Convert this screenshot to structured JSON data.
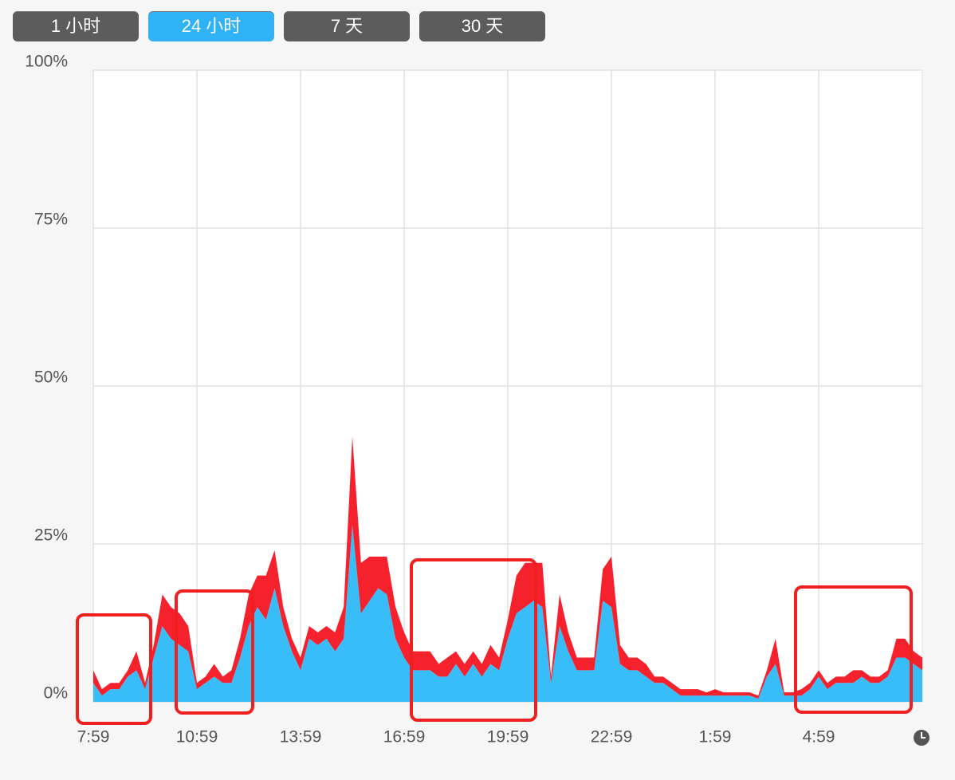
{
  "buttons": [
    {
      "label": "1 小时",
      "active": false
    },
    {
      "label": "24 小时",
      "active": true
    },
    {
      "label": "7 天",
      "active": false
    },
    {
      "label": "30 天",
      "active": false
    }
  ],
  "chart_data": {
    "type": "stacked-area",
    "x": [
      0,
      0.25,
      0.5,
      0.75,
      1,
      1.25,
      1.5,
      1.75,
      2,
      2.25,
      2.5,
      2.75,
      3,
      3.25,
      3.5,
      3.75,
      4,
      4.25,
      4.5,
      4.75,
      5,
      5.25,
      5.5,
      5.75,
      6,
      6.25,
      6.5,
      6.75,
      7,
      7.25,
      7.5,
      7.75,
      8,
      8.25,
      8.5,
      8.75,
      9,
      9.25,
      9.5,
      9.75,
      10,
      10.25,
      10.5,
      10.75,
      11,
      11.25,
      11.5,
      11.75,
      12,
      12.25,
      12.5,
      12.75,
      13,
      13.25,
      13.5,
      13.75,
      14,
      14.25,
      14.5,
      14.75,
      15,
      15.25,
      15.5,
      15.75,
      16,
      16.25,
      16.5,
      16.75,
      17,
      17.25,
      17.5,
      17.75,
      18,
      18.25,
      18.5,
      18.75,
      19,
      19.25,
      19.5,
      19.75,
      20,
      20.25,
      20.5,
      20.75,
      21,
      21.25,
      21.5,
      21.75,
      22,
      22.25,
      22.5,
      22.75,
      23,
      23.25,
      23.5,
      23.75,
      24
    ],
    "series": [
      {
        "color": "#38bdf8",
        "values": [
          3,
          1,
          2,
          2,
          4,
          5,
          2,
          7,
          12,
          10,
          9,
          8,
          2,
          3,
          4,
          3,
          3,
          7,
          12,
          15,
          13,
          18,
          12,
          8,
          5,
          10,
          9,
          10,
          8,
          10,
          28,
          14,
          16,
          18,
          17,
          10,
          7,
          5,
          5,
          5,
          4,
          4,
          6,
          4,
          6,
          4,
          6,
          5,
          10,
          14,
          15,
          16,
          15,
          3,
          12,
          8,
          5,
          5,
          5,
          16,
          15,
          6,
          5,
          5,
          4,
          3,
          3,
          2,
          1,
          1,
          1,
          1,
          1,
          1,
          1,
          1,
          1,
          0.5,
          4,
          6,
          1,
          1,
          1,
          2,
          4,
          2,
          3,
          3,
          3,
          4,
          3,
          3,
          4,
          7,
          7,
          6,
          5
        ]
      },
      {
        "color": "#f5222d",
        "values": [
          2,
          1,
          1,
          1,
          1,
          3,
          1,
          2,
          5,
          5,
          5,
          4,
          1,
          1,
          2,
          1,
          2,
          3,
          5,
          5,
          7,
          6,
          3,
          2,
          2,
          2,
          2,
          2,
          3,
          5,
          14,
          8,
          7,
          5,
          6,
          5,
          4,
          3,
          3,
          3,
          2,
          3,
          2,
          2,
          2,
          2,
          3,
          2,
          3,
          6,
          7,
          6,
          7,
          1,
          5,
          3,
          2,
          2,
          2,
          5,
          8,
          3,
          2,
          2,
          2,
          1,
          1,
          1,
          1,
          1,
          1,
          0.5,
          1,
          0.5,
          0.5,
          0.5,
          0.5,
          0.5,
          1,
          4,
          0.5,
          0.5,
          1,
          1,
          1,
          1,
          1,
          1,
          2,
          1,
          1,
          1,
          1,
          3,
          3,
          2,
          2
        ]
      }
    ],
    "xlim": [
      0,
      24
    ],
    "xticks": [
      {
        "value": 0,
        "label": "7:59"
      },
      {
        "value": 3,
        "label": "10:59"
      },
      {
        "value": 6,
        "label": "13:59"
      },
      {
        "value": 9,
        "label": "16:59"
      },
      {
        "value": 12,
        "label": "19:59"
      },
      {
        "value": 15,
        "label": "22:59"
      },
      {
        "value": 18,
        "label": "1:59"
      },
      {
        "value": 21,
        "label": "4:59"
      }
    ],
    "ylim": [
      0,
      100
    ],
    "yticks": [
      {
        "value": 0,
        "label": "0%"
      },
      {
        "value": 25,
        "label": "25%"
      },
      {
        "value": 50,
        "label": "50%"
      },
      {
        "value": 75,
        "label": "75%"
      },
      {
        "value": 100,
        "label": "100%"
      }
    ],
    "grid": true
  }
}
